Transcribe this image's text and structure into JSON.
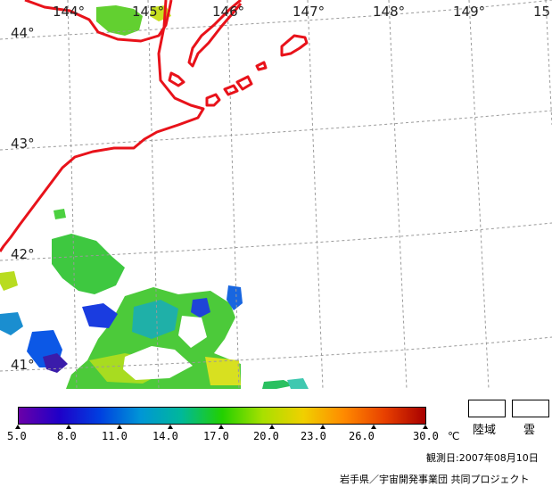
{
  "map": {
    "lon_labels": [
      "144°",
      "145°",
      "146°",
      "147°",
      "148°",
      "149°",
      "15"
    ],
    "lat_labels": [
      "44°",
      "43°",
      "42°",
      "41°"
    ],
    "colors": {
      "coast": "#e8121a",
      "grid": "#9a9a9a"
    }
  },
  "colorbar": {
    "ticks": [
      "5.0",
      "8.0",
      "11.0",
      "14.0",
      "17.0",
      "20.0",
      "23.0",
      "26.0",
      "30.0"
    ],
    "unit": "℃",
    "colors": [
      "#6a00a8",
      "#1f00c8",
      "#0040e0",
      "#0096d6",
      "#00b89a",
      "#22d000",
      "#a8e000",
      "#f0d000",
      "#ff8a00",
      "#e84000",
      "#a80000"
    ]
  },
  "legend": {
    "land": "陸域",
    "cloud": "雲"
  },
  "footer": {
    "date": "観測日:2007年08月10日",
    "credit": "岩手県／宇宙開発事業団 共同プロジェクト"
  }
}
